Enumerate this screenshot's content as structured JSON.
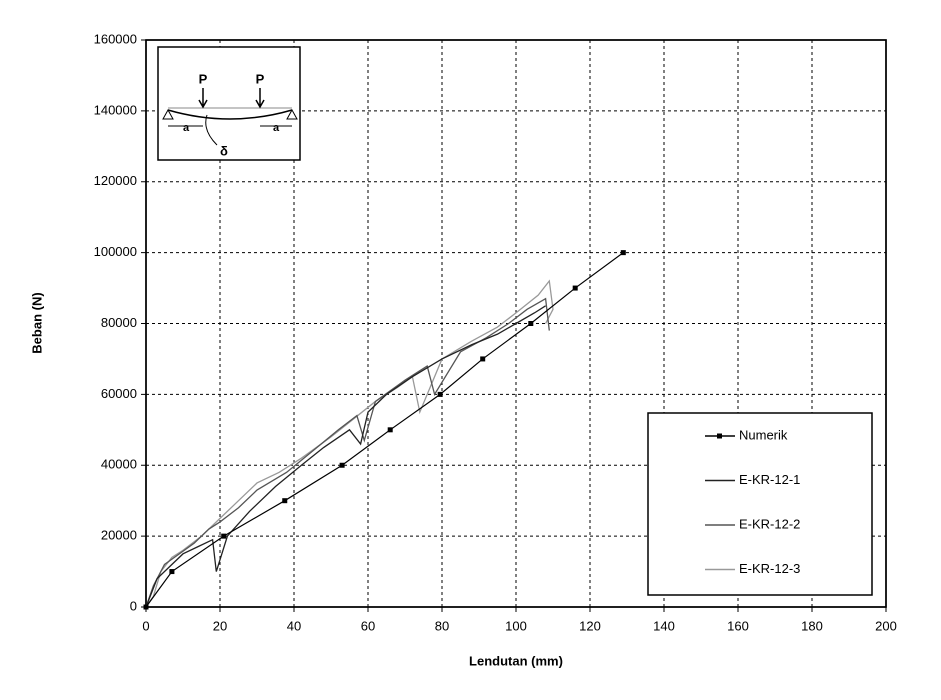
{
  "chart_data": {
    "type": "line",
    "x_label": "Lendutan (mm)",
    "y_label": "Beban (N)",
    "xlim": [
      0,
      200
    ],
    "xticks": [
      0,
      20,
      40,
      60,
      80,
      100,
      120,
      140,
      160,
      180,
      200
    ],
    "ylim": [
      0,
      160000
    ],
    "yticks": [
      0,
      20000,
      40000,
      60000,
      80000,
      100000,
      120000,
      140000,
      160000
    ],
    "grid": true,
    "legend": "lower right",
    "inset_labels": [
      "P",
      "P",
      "a",
      "a",
      "δ"
    ],
    "series": [
      {
        "name": "Numerik",
        "color": "#000000",
        "marker": true,
        "x": [
          0,
          7,
          21,
          37.5,
          53,
          66,
          79.5,
          91,
          104,
          116,
          129
        ],
        "values": [
          0,
          10000,
          20000,
          30000,
          40000,
          50000,
          60000,
          70000,
          80000,
          90000,
          100000
        ]
      },
      {
        "name": "E-KR-12-1",
        "color": "#222222",
        "marker": false,
        "x": [
          0,
          3,
          6,
          10,
          14,
          18,
          19,
          22,
          28,
          35,
          42,
          48,
          55,
          58,
          60,
          65,
          72,
          80,
          88,
          95,
          100,
          105,
          108
        ],
        "values": [
          0,
          8000,
          11000,
          15000,
          17000,
          19000,
          10000,
          20000,
          27000,
          34000,
          40000,
          45000,
          50000,
          46000,
          55000,
          60000,
          65000,
          70000,
          74000,
          77000,
          80000,
          83000,
          85000
        ]
      },
      {
        "name": "E-KR-12-2",
        "color": "#555555",
        "marker": false,
        "x": [
          0,
          2,
          5,
          9,
          13,
          17,
          20,
          25,
          30,
          38,
          45,
          52,
          57,
          59,
          62,
          70,
          76,
          78,
          85,
          92,
          98,
          103,
          108,
          109
        ],
        "values": [
          0,
          6000,
          12000,
          15000,
          18000,
          22000,
          24000,
          28000,
          33000,
          38000,
          44000,
          50000,
          54000,
          47000,
          58000,
          64000,
          68000,
          60000,
          72000,
          76000,
          80000,
          84000,
          87000,
          78000
        ]
      },
      {
        "name": "E-KR-12-3",
        "color": "#999999",
        "marker": false,
        "x": [
          0,
          2,
          4,
          7,
          10,
          15,
          20,
          25,
          30,
          36,
          42,
          50,
          56,
          62,
          68,
          72,
          74,
          80,
          88,
          95,
          100,
          106,
          109,
          110,
          108
        ],
        "values": [
          0,
          3000,
          10000,
          14000,
          16000,
          20000,
          25000,
          30000,
          35000,
          38000,
          42000,
          48000,
          53000,
          58000,
          62000,
          65000,
          55000,
          70000,
          75000,
          79000,
          83000,
          88000,
          92000,
          84000,
          80000
        ]
      }
    ]
  }
}
